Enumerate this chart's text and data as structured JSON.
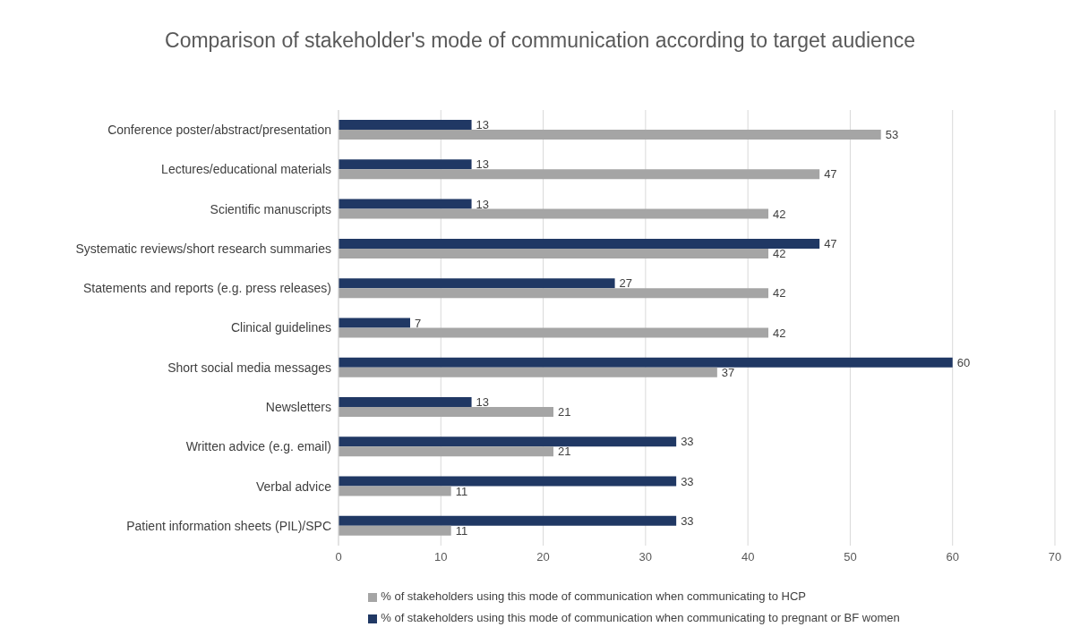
{
  "chart_data": {
    "type": "bar",
    "orientation": "horizontal",
    "title": "Comparison of stakeholder's mode of communication according to target audience",
    "categories": [
      "Conference poster/abstract/presentation",
      "Lectures/educational materials",
      "Scientific manuscripts",
      "Systematic reviews/short research summaries",
      "Statements and reports (e.g. press releases)",
      "Clinical guidelines",
      "Short social media messages",
      "Newsletters",
      "Written advice (e.g. email)",
      "Verbal advice",
      "Patient information sheets (PIL)/SPC"
    ],
    "series": [
      {
        "name": "% of stakeholders using this mode of communication when communicating to pregnant or BF women",
        "color": "#203864",
        "values": [
          13,
          13,
          13,
          47,
          27,
          7,
          60,
          13,
          33,
          33,
          33
        ]
      },
      {
        "name": "% of stakeholders using this mode of communication when communicating to HCP",
        "color": "#a5a5a5",
        "values": [
          53,
          47,
          42,
          42,
          42,
          42,
          37,
          21,
          21,
          11,
          11
        ]
      }
    ],
    "xlim": [
      0,
      70
    ],
    "xticks": [
      0,
      10,
      20,
      30,
      40,
      50,
      60,
      70
    ],
    "grid": "x",
    "legend": "bottom",
    "data_labels": true
  }
}
